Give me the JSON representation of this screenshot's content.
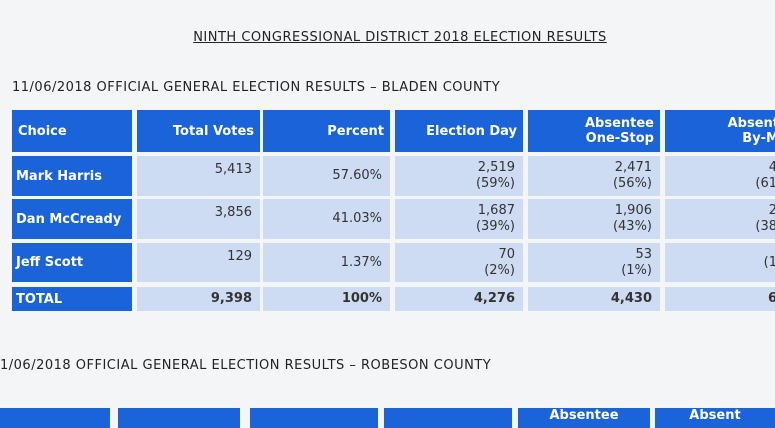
{
  "title": "NINTH CONGRESSIONAL DISTRICT 2018 ELECTION RESULTS",
  "sections": [
    {
      "heading": "11/06/2018 OFFICIAL GENERAL ELECTION RESULTS – BLADEN COUNTY",
      "table": {
        "headers": [
          [
            "Choice"
          ],
          [
            "Total Votes"
          ],
          [
            "Percent"
          ],
          [
            "Election Day"
          ],
          [
            "Absentee",
            "One-Stop"
          ],
          [
            "Absent",
            "By-M"
          ]
        ],
        "rows": [
          [
            [
              "Mark Harris"
            ],
            [
              "5,413"
            ],
            [
              "57.60%"
            ],
            [
              "2,519",
              "(59%)"
            ],
            [
              "2,471",
              "(56%)"
            ],
            [
              "4",
              "(61"
            ]
          ],
          [
            [
              "Dan McCready"
            ],
            [
              "3,856"
            ],
            [
              "41.03%"
            ],
            [
              "1,687",
              "(39%)"
            ],
            [
              "1,906",
              "(43%)"
            ],
            [
              "2",
              "(38"
            ]
          ],
          [
            [
              "Jeff Scott"
            ],
            [
              "129"
            ],
            [
              "1.37%"
            ],
            [
              "70",
              "(2%)"
            ],
            [
              "53",
              "(1%)"
            ],
            [
              "(1"
            ]
          ]
        ],
        "total": [
          "TOTAL",
          "9,398",
          "100%",
          "4,276",
          "4,430",
          "6"
        ]
      }
    },
    {
      "heading": "1/06/2018 OFFICIAL GENERAL ELECTION RESULTS – ROBESON COUNTY",
      "table": {
        "headers": [
          "Absentee",
          "Absent"
        ]
      }
    }
  ]
}
